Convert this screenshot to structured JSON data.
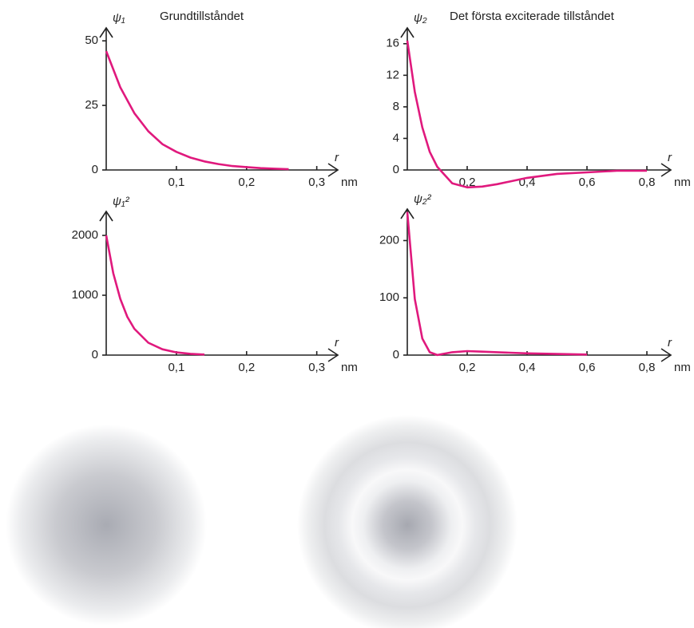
{
  "chart_data": [
    {
      "type": "line",
      "title": "Grundtillståndet",
      "y_label": "ψ₁",
      "x_label": "r",
      "x_unit": "nm",
      "color": "#e0197d",
      "x": [
        0,
        0.02,
        0.04,
        0.06,
        0.08,
        0.1,
        0.12,
        0.14,
        0.16,
        0.18,
        0.2,
        0.22,
        0.24,
        0.26
      ],
      "values": [
        46,
        32,
        22,
        15,
        10,
        7,
        4.8,
        3.3,
        2.3,
        1.5,
        1.1,
        0.7,
        0.5,
        0.3
      ],
      "xlim": [
        0,
        0.33
      ],
      "ylim": [
        0,
        55
      ],
      "xticks": [
        {
          "value": 0.1,
          "label": "0,1"
        },
        {
          "value": 0.2,
          "label": "0,2"
        },
        {
          "value": 0.3,
          "label": "0,3"
        }
      ],
      "yticks": [
        0,
        25,
        50
      ]
    },
    {
      "type": "line",
      "title": "Det första exciterade tillståndet",
      "y_label": "ψ₂",
      "x_label": "r",
      "x_unit": "nm",
      "color": "#e0197d",
      "x": [
        0,
        0.025,
        0.05,
        0.075,
        0.1,
        0.15,
        0.2,
        0.25,
        0.3,
        0.4,
        0.5,
        0.6,
        0.7,
        0.8
      ],
      "values": [
        16.4,
        9.9,
        5.4,
        2.3,
        0.4,
        -1.7,
        -2.2,
        -2.1,
        -1.8,
        -1.0,
        -0.5,
        -0.3,
        -0.1,
        -0.1
      ],
      "xlim": [
        0,
        0.88
      ],
      "ylim": [
        -3,
        18
      ],
      "xticks": [
        {
          "value": 0.2,
          "label": "0,2"
        },
        {
          "value": 0.4,
          "label": "0,4"
        },
        {
          "value": 0.6,
          "label": "0,6"
        },
        {
          "value": 0.8,
          "label": "0,8"
        }
      ],
      "yticks": [
        0,
        4,
        8,
        12,
        16
      ]
    },
    {
      "type": "line",
      "y_label": "ψ₁²",
      "x_label": "r",
      "x_unit": "nm",
      "color": "#e0197d",
      "x": [
        0,
        0.01,
        0.02,
        0.03,
        0.04,
        0.06,
        0.08,
        0.1,
        0.12,
        0.14
      ],
      "values": [
        2000,
        1370,
        940,
        640,
        440,
        207,
        97,
        46,
        21,
        10
      ],
      "xlim": [
        0,
        0.33
      ],
      "ylim": [
        0,
        2400
      ],
      "xticks": [
        {
          "value": 0.1,
          "label": "0,1"
        },
        {
          "value": 0.2,
          "label": "0,2"
        },
        {
          "value": 0.3,
          "label": "0,3"
        }
      ],
      "yticks": [
        0,
        1000,
        2000
      ]
    },
    {
      "type": "line",
      "y_label": "ψ₂²",
      "x_label": "r",
      "x_unit": "nm",
      "color": "#e0197d",
      "x": [
        0,
        0.025,
        0.05,
        0.075,
        0.1,
        0.15,
        0.2,
        0.25,
        0.3,
        0.4,
        0.5,
        0.6
      ],
      "values": [
        250,
        98,
        29,
        5,
        0.1,
        5,
        7,
        6,
        5,
        3,
        2,
        1
      ],
      "xlim": [
        0,
        0.88
      ],
      "ylim": [
        0,
        255
      ],
      "xticks": [
        {
          "value": 0.2,
          "label": "0,2"
        },
        {
          "value": 0.4,
          "label": "0,4"
        },
        {
          "value": 0.6,
          "label": "0,6"
        },
        {
          "value": 0.8,
          "label": "0,8"
        }
      ],
      "yticks": [
        0,
        100,
        200
      ]
    }
  ]
}
